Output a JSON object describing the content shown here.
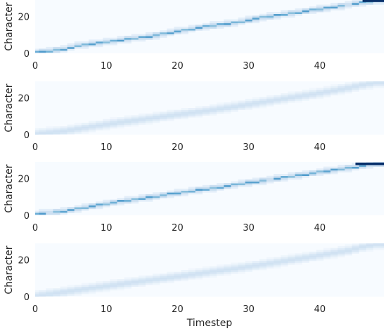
{
  "chart_data": [
    {
      "type": "heatmap",
      "style": "sharp",
      "colormap": "Blues",
      "xlabel": "",
      "ylabel": "Character",
      "xlim": [
        0,
        49
      ],
      "ylim": [
        0,
        29
      ],
      "xticks": [
        "0",
        "10",
        "20",
        "30",
        "40"
      ],
      "yticks": [
        "0",
        "20"
      ],
      "alignment_path": [
        [
          0,
          0.6
        ],
        [
          2,
          1.3
        ],
        [
          4,
          2.4
        ],
        [
          6,
          4.3
        ],
        [
          8,
          5.3
        ],
        [
          10,
          6.3
        ],
        [
          12,
          7.3
        ],
        [
          14,
          8.3
        ],
        [
          16,
          9.2
        ],
        [
          18,
          10.6
        ],
        [
          20,
          12.1
        ],
        [
          22,
          13.4
        ],
        [
          24,
          14.6
        ],
        [
          26,
          15.6
        ],
        [
          28,
          16.6
        ],
        [
          30,
          18.1
        ],
        [
          32,
          19.6
        ],
        [
          34,
          20.7
        ],
        [
          36,
          21.9
        ],
        [
          38,
          23.0
        ],
        [
          40,
          24.2
        ],
        [
          42,
          25.4
        ],
        [
          44,
          26.5
        ],
        [
          46,
          27.7
        ],
        [
          48,
          28.6
        ]
      ],
      "end_segment": {
        "from": 46,
        "to": 49,
        "y": 28.6
      }
    },
    {
      "type": "heatmap",
      "style": "diffuse",
      "colormap": "Blues",
      "xlabel": "",
      "ylabel": "Character",
      "xlim": [
        0,
        49
      ],
      "ylim": [
        0,
        29
      ],
      "xticks": [
        "0",
        "10",
        "20",
        "30",
        "40"
      ],
      "yticks": [
        "0",
        "20"
      ],
      "alignment_path": [
        [
          0,
          0.5
        ],
        [
          4,
          2.0
        ],
        [
          8,
          4.5
        ],
        [
          12,
          6.8
        ],
        [
          16,
          8.9
        ],
        [
          20,
          11.0
        ],
        [
          24,
          13.0
        ],
        [
          28,
          15.3
        ],
        [
          32,
          17.8
        ],
        [
          36,
          20.3
        ],
        [
          40,
          22.7
        ],
        [
          44,
          25.5
        ],
        [
          46,
          27.2
        ],
        [
          48,
          28.5
        ]
      ]
    },
    {
      "type": "heatmap",
      "style": "sharp",
      "colormap": "Blues",
      "xlabel": "",
      "ylabel": "Character",
      "xlim": [
        0,
        49
      ],
      "ylim": [
        0,
        29
      ],
      "xticks": [
        "0",
        "10",
        "20",
        "30",
        "40"
      ],
      "yticks": [
        "0",
        "20"
      ],
      "alignment_path": [
        [
          0,
          0.7
        ],
        [
          2,
          1.5
        ],
        [
          4,
          2.4
        ],
        [
          6,
          3.6
        ],
        [
          8,
          5.0
        ],
        [
          10,
          6.4
        ],
        [
          12,
          7.6
        ],
        [
          14,
          8.7
        ],
        [
          16,
          9.9
        ],
        [
          18,
          11.0
        ],
        [
          20,
          12.1
        ],
        [
          22,
          13.3
        ],
        [
          24,
          14.4
        ],
        [
          26,
          15.4
        ],
        [
          28,
          16.6
        ],
        [
          30,
          17.8
        ],
        [
          32,
          18.9
        ],
        [
          34,
          20.1
        ],
        [
          36,
          21.3
        ],
        [
          38,
          22.4
        ],
        [
          40,
          23.6
        ],
        [
          42,
          24.7
        ],
        [
          44,
          25.9
        ],
        [
          46,
          27.0
        ],
        [
          48,
          28.0
        ]
      ],
      "end_segment": {
        "from": 45,
        "to": 49,
        "y": 28.0
      }
    },
    {
      "type": "heatmap",
      "style": "diffuse",
      "colormap": "Blues",
      "xlabel": "Timestep",
      "ylabel": "Character",
      "xlim": [
        0,
        49
      ],
      "ylim": [
        0,
        29
      ],
      "xticks": [
        "0",
        "10",
        "20",
        "30",
        "40"
      ],
      "yticks": [
        "0",
        "20"
      ],
      "alignment_path": [
        [
          0,
          0.5
        ],
        [
          4,
          2.6
        ],
        [
          8,
          4.8
        ],
        [
          12,
          6.9
        ],
        [
          16,
          9.0
        ],
        [
          20,
          11.0
        ],
        [
          24,
          13.2
        ],
        [
          28,
          15.3
        ],
        [
          32,
          17.6
        ],
        [
          36,
          20.1
        ],
        [
          40,
          22.6
        ],
        [
          44,
          25.2
        ],
        [
          46,
          27.2
        ],
        [
          48,
          28.6
        ]
      ]
    }
  ]
}
